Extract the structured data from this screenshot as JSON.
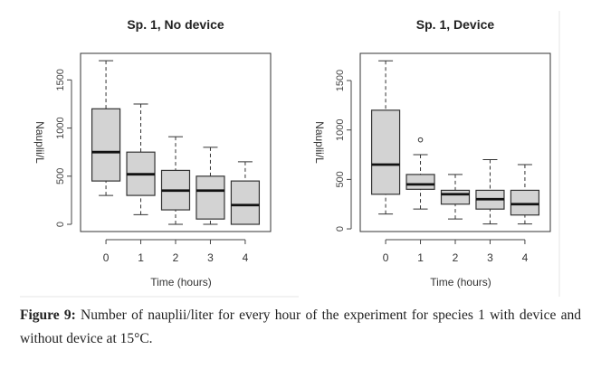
{
  "caption": {
    "label": "Figure 9:",
    "text": "Number of nauplii/liter for every hour of the experiment for species 1 with device and without device at 15°C."
  },
  "chart_data": [
    {
      "type": "boxplot",
      "title": "Sp. 1, No device",
      "xlabel": "Time (hours)",
      "ylabel": "Nauplii/L",
      "categories": [
        "0",
        "1",
        "2",
        "3",
        "4"
      ],
      "yticks": [
        0,
        500,
        1000,
        1500
      ],
      "ylim": [
        -75,
        1776
      ],
      "boxes": [
        {
          "min": 300,
          "q1": 450,
          "median": 750,
          "q3": 1200,
          "max": 1700,
          "outliers": []
        },
        {
          "min": 100,
          "q1": 300,
          "median": 520,
          "q3": 750,
          "max": 1250,
          "outliers": []
        },
        {
          "min": 0,
          "q1": 150,
          "median": 350,
          "q3": 560,
          "max": 910,
          "outliers": []
        },
        {
          "min": 0,
          "q1": 55,
          "median": 350,
          "q3": 500,
          "max": 800,
          "outliers": []
        },
        {
          "min": 0,
          "q1": 0,
          "median": 200,
          "q3": 450,
          "max": 650,
          "outliers": []
        }
      ],
      "fill": "#d3d3d3"
    },
    {
      "type": "boxplot",
      "title": "Sp. 1, Device",
      "xlabel": "Time (hours)",
      "ylabel": "Nauplii/L",
      "categories": [
        "0",
        "1",
        "2",
        "3",
        "4"
      ],
      "yticks": [
        0,
        500,
        1000,
        1500
      ],
      "ylim": [
        -27,
        1775
      ],
      "boxes": [
        {
          "min": 150,
          "q1": 350,
          "median": 650,
          "q3": 1200,
          "max": 1700,
          "outliers": []
        },
        {
          "min": 200,
          "q1": 400,
          "median": 450,
          "q3": 550,
          "max": 750,
          "outliers": [
            900
          ]
        },
        {
          "min": 100,
          "q1": 250,
          "median": 350,
          "q3": 390,
          "max": 550,
          "outliers": []
        },
        {
          "min": 50,
          "q1": 200,
          "median": 300,
          "q3": 390,
          "max": 700,
          "outliers": []
        },
        {
          "min": 50,
          "q1": 140,
          "median": 250,
          "q3": 390,
          "max": 650,
          "outliers": []
        }
      ],
      "fill": "#d3d3d3"
    }
  ]
}
